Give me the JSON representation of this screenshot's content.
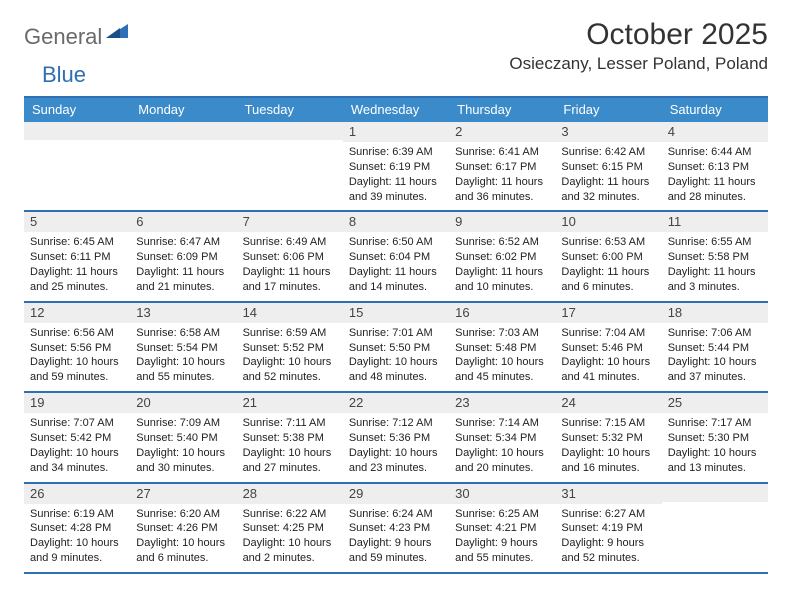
{
  "brand": {
    "part1": "General",
    "part2": "Blue"
  },
  "title": "October 2025",
  "location": "Osieczany, Lesser Poland, Poland",
  "colors": {
    "header_bg": "#3b8bca",
    "border": "#2f6fb3",
    "daynum_bg": "#eeeeee",
    "text": "#222222"
  },
  "day_names": [
    "Sunday",
    "Monday",
    "Tuesday",
    "Wednesday",
    "Thursday",
    "Friday",
    "Saturday"
  ],
  "weeks": [
    [
      {
        "n": "",
        "sr": "",
        "ss": "",
        "dl": ""
      },
      {
        "n": "",
        "sr": "",
        "ss": "",
        "dl": ""
      },
      {
        "n": "",
        "sr": "",
        "ss": "",
        "dl": ""
      },
      {
        "n": "1",
        "sr": "Sunrise: 6:39 AM",
        "ss": "Sunset: 6:19 PM",
        "dl": "Daylight: 11 hours and 39 minutes."
      },
      {
        "n": "2",
        "sr": "Sunrise: 6:41 AM",
        "ss": "Sunset: 6:17 PM",
        "dl": "Daylight: 11 hours and 36 minutes."
      },
      {
        "n": "3",
        "sr": "Sunrise: 6:42 AM",
        "ss": "Sunset: 6:15 PM",
        "dl": "Daylight: 11 hours and 32 minutes."
      },
      {
        "n": "4",
        "sr": "Sunrise: 6:44 AM",
        "ss": "Sunset: 6:13 PM",
        "dl": "Daylight: 11 hours and 28 minutes."
      }
    ],
    [
      {
        "n": "5",
        "sr": "Sunrise: 6:45 AM",
        "ss": "Sunset: 6:11 PM",
        "dl": "Daylight: 11 hours and 25 minutes."
      },
      {
        "n": "6",
        "sr": "Sunrise: 6:47 AM",
        "ss": "Sunset: 6:09 PM",
        "dl": "Daylight: 11 hours and 21 minutes."
      },
      {
        "n": "7",
        "sr": "Sunrise: 6:49 AM",
        "ss": "Sunset: 6:06 PM",
        "dl": "Daylight: 11 hours and 17 minutes."
      },
      {
        "n": "8",
        "sr": "Sunrise: 6:50 AM",
        "ss": "Sunset: 6:04 PM",
        "dl": "Daylight: 11 hours and 14 minutes."
      },
      {
        "n": "9",
        "sr": "Sunrise: 6:52 AM",
        "ss": "Sunset: 6:02 PM",
        "dl": "Daylight: 11 hours and 10 minutes."
      },
      {
        "n": "10",
        "sr": "Sunrise: 6:53 AM",
        "ss": "Sunset: 6:00 PM",
        "dl": "Daylight: 11 hours and 6 minutes."
      },
      {
        "n": "11",
        "sr": "Sunrise: 6:55 AM",
        "ss": "Sunset: 5:58 PM",
        "dl": "Daylight: 11 hours and 3 minutes."
      }
    ],
    [
      {
        "n": "12",
        "sr": "Sunrise: 6:56 AM",
        "ss": "Sunset: 5:56 PM",
        "dl": "Daylight: 10 hours and 59 minutes."
      },
      {
        "n": "13",
        "sr": "Sunrise: 6:58 AM",
        "ss": "Sunset: 5:54 PM",
        "dl": "Daylight: 10 hours and 55 minutes."
      },
      {
        "n": "14",
        "sr": "Sunrise: 6:59 AM",
        "ss": "Sunset: 5:52 PM",
        "dl": "Daylight: 10 hours and 52 minutes."
      },
      {
        "n": "15",
        "sr": "Sunrise: 7:01 AM",
        "ss": "Sunset: 5:50 PM",
        "dl": "Daylight: 10 hours and 48 minutes."
      },
      {
        "n": "16",
        "sr": "Sunrise: 7:03 AM",
        "ss": "Sunset: 5:48 PM",
        "dl": "Daylight: 10 hours and 45 minutes."
      },
      {
        "n": "17",
        "sr": "Sunrise: 7:04 AM",
        "ss": "Sunset: 5:46 PM",
        "dl": "Daylight: 10 hours and 41 minutes."
      },
      {
        "n": "18",
        "sr": "Sunrise: 7:06 AM",
        "ss": "Sunset: 5:44 PM",
        "dl": "Daylight: 10 hours and 37 minutes."
      }
    ],
    [
      {
        "n": "19",
        "sr": "Sunrise: 7:07 AM",
        "ss": "Sunset: 5:42 PM",
        "dl": "Daylight: 10 hours and 34 minutes."
      },
      {
        "n": "20",
        "sr": "Sunrise: 7:09 AM",
        "ss": "Sunset: 5:40 PM",
        "dl": "Daylight: 10 hours and 30 minutes."
      },
      {
        "n": "21",
        "sr": "Sunrise: 7:11 AM",
        "ss": "Sunset: 5:38 PM",
        "dl": "Daylight: 10 hours and 27 minutes."
      },
      {
        "n": "22",
        "sr": "Sunrise: 7:12 AM",
        "ss": "Sunset: 5:36 PM",
        "dl": "Daylight: 10 hours and 23 minutes."
      },
      {
        "n": "23",
        "sr": "Sunrise: 7:14 AM",
        "ss": "Sunset: 5:34 PM",
        "dl": "Daylight: 10 hours and 20 minutes."
      },
      {
        "n": "24",
        "sr": "Sunrise: 7:15 AM",
        "ss": "Sunset: 5:32 PM",
        "dl": "Daylight: 10 hours and 16 minutes."
      },
      {
        "n": "25",
        "sr": "Sunrise: 7:17 AM",
        "ss": "Sunset: 5:30 PM",
        "dl": "Daylight: 10 hours and 13 minutes."
      }
    ],
    [
      {
        "n": "26",
        "sr": "Sunrise: 6:19 AM",
        "ss": "Sunset: 4:28 PM",
        "dl": "Daylight: 10 hours and 9 minutes."
      },
      {
        "n": "27",
        "sr": "Sunrise: 6:20 AM",
        "ss": "Sunset: 4:26 PM",
        "dl": "Daylight: 10 hours and 6 minutes."
      },
      {
        "n": "28",
        "sr": "Sunrise: 6:22 AM",
        "ss": "Sunset: 4:25 PM",
        "dl": "Daylight: 10 hours and 2 minutes."
      },
      {
        "n": "29",
        "sr": "Sunrise: 6:24 AM",
        "ss": "Sunset: 4:23 PM",
        "dl": "Daylight: 9 hours and 59 minutes."
      },
      {
        "n": "30",
        "sr": "Sunrise: 6:25 AM",
        "ss": "Sunset: 4:21 PM",
        "dl": "Daylight: 9 hours and 55 minutes."
      },
      {
        "n": "31",
        "sr": "Sunrise: 6:27 AM",
        "ss": "Sunset: 4:19 PM",
        "dl": "Daylight: 9 hours and 52 minutes."
      },
      {
        "n": "",
        "sr": "",
        "ss": "",
        "dl": ""
      }
    ]
  ]
}
